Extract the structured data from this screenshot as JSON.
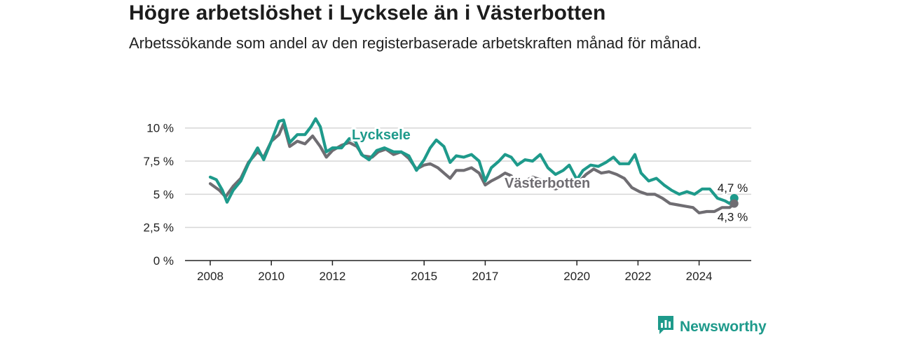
{
  "title": "Högre arbetslöshet i Lycksele än i Västerbotten",
  "subtitle": "Arbetssökande som andel av den registerbaserade arbetskraften månad för månad.",
  "brand": {
    "name": "Newsworthy",
    "icon": "newsworthy-logo-icon",
    "color": "#1e9a8b"
  },
  "chart_data": {
    "type": "line",
    "title": "Högre arbetslöshet i Lycksele än i Västerbotten",
    "ylabel": "",
    "xlabel": "",
    "ylim": [
      0,
      11.2
    ],
    "xlim": [
      2007.6,
      2025.9
    ],
    "grid": true,
    "y_ticks": [
      0,
      2.5,
      5,
      7.5,
      10
    ],
    "y_tick_labels": [
      "0 %",
      "2,5 %",
      "5 %",
      "7,5 %",
      "10 %"
    ],
    "x_ticks": [
      2008,
      2010,
      2012,
      2015,
      2017,
      2020,
      2022,
      2024
    ],
    "x_tick_labels": [
      "2008",
      "2010",
      "2012",
      "2015",
      "2017",
      "2020",
      "2022",
      "2024"
    ],
    "series": [
      {
        "name": "Lycksele",
        "color": "#1e9a8b",
        "end_label": "4,7 %",
        "points": [
          [
            2008.0,
            6.3
          ],
          [
            2008.2,
            6.1
          ],
          [
            2008.4,
            5.3
          ],
          [
            2008.55,
            4.4
          ],
          [
            2008.75,
            5.3
          ],
          [
            2009.0,
            6.0
          ],
          [
            2009.25,
            7.3
          ],
          [
            2009.55,
            8.5
          ],
          [
            2009.75,
            7.6
          ],
          [
            2010.0,
            9.0
          ],
          [
            2010.25,
            10.5
          ],
          [
            2010.4,
            10.6
          ],
          [
            2010.6,
            8.9
          ],
          [
            2010.85,
            9.5
          ],
          [
            2011.1,
            9.5
          ],
          [
            2011.3,
            10.1
          ],
          [
            2011.45,
            10.7
          ],
          [
            2011.6,
            10.1
          ],
          [
            2011.8,
            8.2
          ],
          [
            2012.0,
            8.5
          ],
          [
            2012.3,
            8.5
          ],
          [
            2012.55,
            9.2
          ],
          [
            2012.75,
            9.0
          ],
          [
            2012.95,
            8.0
          ],
          [
            2013.2,
            7.6
          ],
          [
            2013.45,
            8.3
          ],
          [
            2013.7,
            8.5
          ],
          [
            2014.0,
            8.2
          ],
          [
            2014.25,
            8.2
          ],
          [
            2014.5,
            7.9
          ],
          [
            2014.75,
            6.8
          ],
          [
            2015.0,
            7.6
          ],
          [
            2015.2,
            8.5
          ],
          [
            2015.4,
            9.1
          ],
          [
            2015.65,
            8.6
          ],
          [
            2015.85,
            7.4
          ],
          [
            2016.05,
            7.9
          ],
          [
            2016.3,
            7.8
          ],
          [
            2016.55,
            8.0
          ],
          [
            2016.8,
            7.5
          ],
          [
            2017.0,
            6.0
          ],
          [
            2017.2,
            7.0
          ],
          [
            2017.45,
            7.5
          ],
          [
            2017.65,
            8.0
          ],
          [
            2017.85,
            7.8
          ],
          [
            2018.05,
            7.2
          ],
          [
            2018.3,
            7.6
          ],
          [
            2018.55,
            7.5
          ],
          [
            2018.8,
            8.0
          ],
          [
            2019.05,
            7.0
          ],
          [
            2019.3,
            6.5
          ],
          [
            2019.55,
            6.8
          ],
          [
            2019.75,
            7.2
          ],
          [
            2020.0,
            6.1
          ],
          [
            2020.2,
            6.8
          ],
          [
            2020.45,
            7.2
          ],
          [
            2020.7,
            7.1
          ],
          [
            2020.95,
            7.4
          ],
          [
            2021.2,
            7.8
          ],
          [
            2021.4,
            7.3
          ],
          [
            2021.7,
            7.3
          ],
          [
            2021.9,
            8.0
          ],
          [
            2022.1,
            6.6
          ],
          [
            2022.35,
            6.0
          ],
          [
            2022.6,
            6.2
          ],
          [
            2022.85,
            5.7
          ],
          [
            2023.1,
            5.3
          ],
          [
            2023.35,
            5.0
          ],
          [
            2023.6,
            5.2
          ],
          [
            2023.85,
            5.0
          ],
          [
            2024.1,
            5.4
          ],
          [
            2024.35,
            5.4
          ],
          [
            2024.6,
            4.7
          ],
          [
            2024.85,
            4.5
          ],
          [
            2025.0,
            4.3
          ],
          [
            2025.15,
            4.7
          ]
        ]
      },
      {
        "name": "Västerbotten",
        "color": "#6f6d72",
        "end_label": "4,3 %",
        "points": [
          [
            2008.0,
            5.8
          ],
          [
            2008.3,
            5.3
          ],
          [
            2008.5,
            4.8
          ],
          [
            2008.75,
            5.6
          ],
          [
            2009.0,
            6.2
          ],
          [
            2009.25,
            7.4
          ],
          [
            2009.55,
            8.2
          ],
          [
            2009.75,
            7.8
          ],
          [
            2010.0,
            9.0
          ],
          [
            2010.25,
            9.5
          ],
          [
            2010.4,
            10.3
          ],
          [
            2010.6,
            8.6
          ],
          [
            2010.85,
            9.0
          ],
          [
            2011.1,
            8.8
          ],
          [
            2011.35,
            9.4
          ],
          [
            2011.6,
            8.6
          ],
          [
            2011.8,
            7.8
          ],
          [
            2012.0,
            8.3
          ],
          [
            2012.3,
            8.7
          ],
          [
            2012.55,
            8.9
          ],
          [
            2012.8,
            8.6
          ],
          [
            2013.0,
            7.9
          ],
          [
            2013.3,
            7.8
          ],
          [
            2013.5,
            8.2
          ],
          [
            2013.75,
            8.4
          ],
          [
            2014.0,
            8.0
          ],
          [
            2014.25,
            8.2
          ],
          [
            2014.5,
            7.7
          ],
          [
            2014.75,
            6.9
          ],
          [
            2015.0,
            7.2
          ],
          [
            2015.2,
            7.3
          ],
          [
            2015.45,
            7.0
          ],
          [
            2015.65,
            6.6
          ],
          [
            2015.85,
            6.2
          ],
          [
            2016.05,
            6.8
          ],
          [
            2016.3,
            6.8
          ],
          [
            2016.55,
            7.0
          ],
          [
            2016.8,
            6.6
          ],
          [
            2017.0,
            5.7
          ],
          [
            2017.2,
            6.0
          ],
          [
            2017.45,
            6.3
          ],
          [
            2017.65,
            6.6
          ],
          [
            2017.85,
            6.4
          ],
          [
            2018.05,
            5.7
          ],
          [
            2018.3,
            6.0
          ],
          [
            2018.55,
            6.3
          ],
          [
            2018.8,
            6.1
          ],
          [
            2019.05,
            5.6
          ],
          [
            2019.3,
            5.4
          ],
          [
            2019.55,
            5.6
          ],
          [
            2019.8,
            5.6
          ],
          [
            2020.05,
            5.9
          ],
          [
            2020.3,
            6.5
          ],
          [
            2020.55,
            6.9
          ],
          [
            2020.8,
            6.6
          ],
          [
            2021.05,
            6.7
          ],
          [
            2021.3,
            6.5
          ],
          [
            2021.55,
            6.2
          ],
          [
            2021.8,
            5.5
          ],
          [
            2022.05,
            5.2
          ],
          [
            2022.3,
            5.0
          ],
          [
            2022.55,
            5.0
          ],
          [
            2022.8,
            4.7
          ],
          [
            2023.05,
            4.3
          ],
          [
            2023.3,
            4.2
          ],
          [
            2023.55,
            4.1
          ],
          [
            2023.8,
            4.0
          ],
          [
            2024.0,
            3.6
          ],
          [
            2024.25,
            3.7
          ],
          [
            2024.5,
            3.7
          ],
          [
            2024.75,
            4.0
          ],
          [
            2025.0,
            4.0
          ],
          [
            2025.15,
            4.3
          ]
        ]
      }
    ]
  }
}
